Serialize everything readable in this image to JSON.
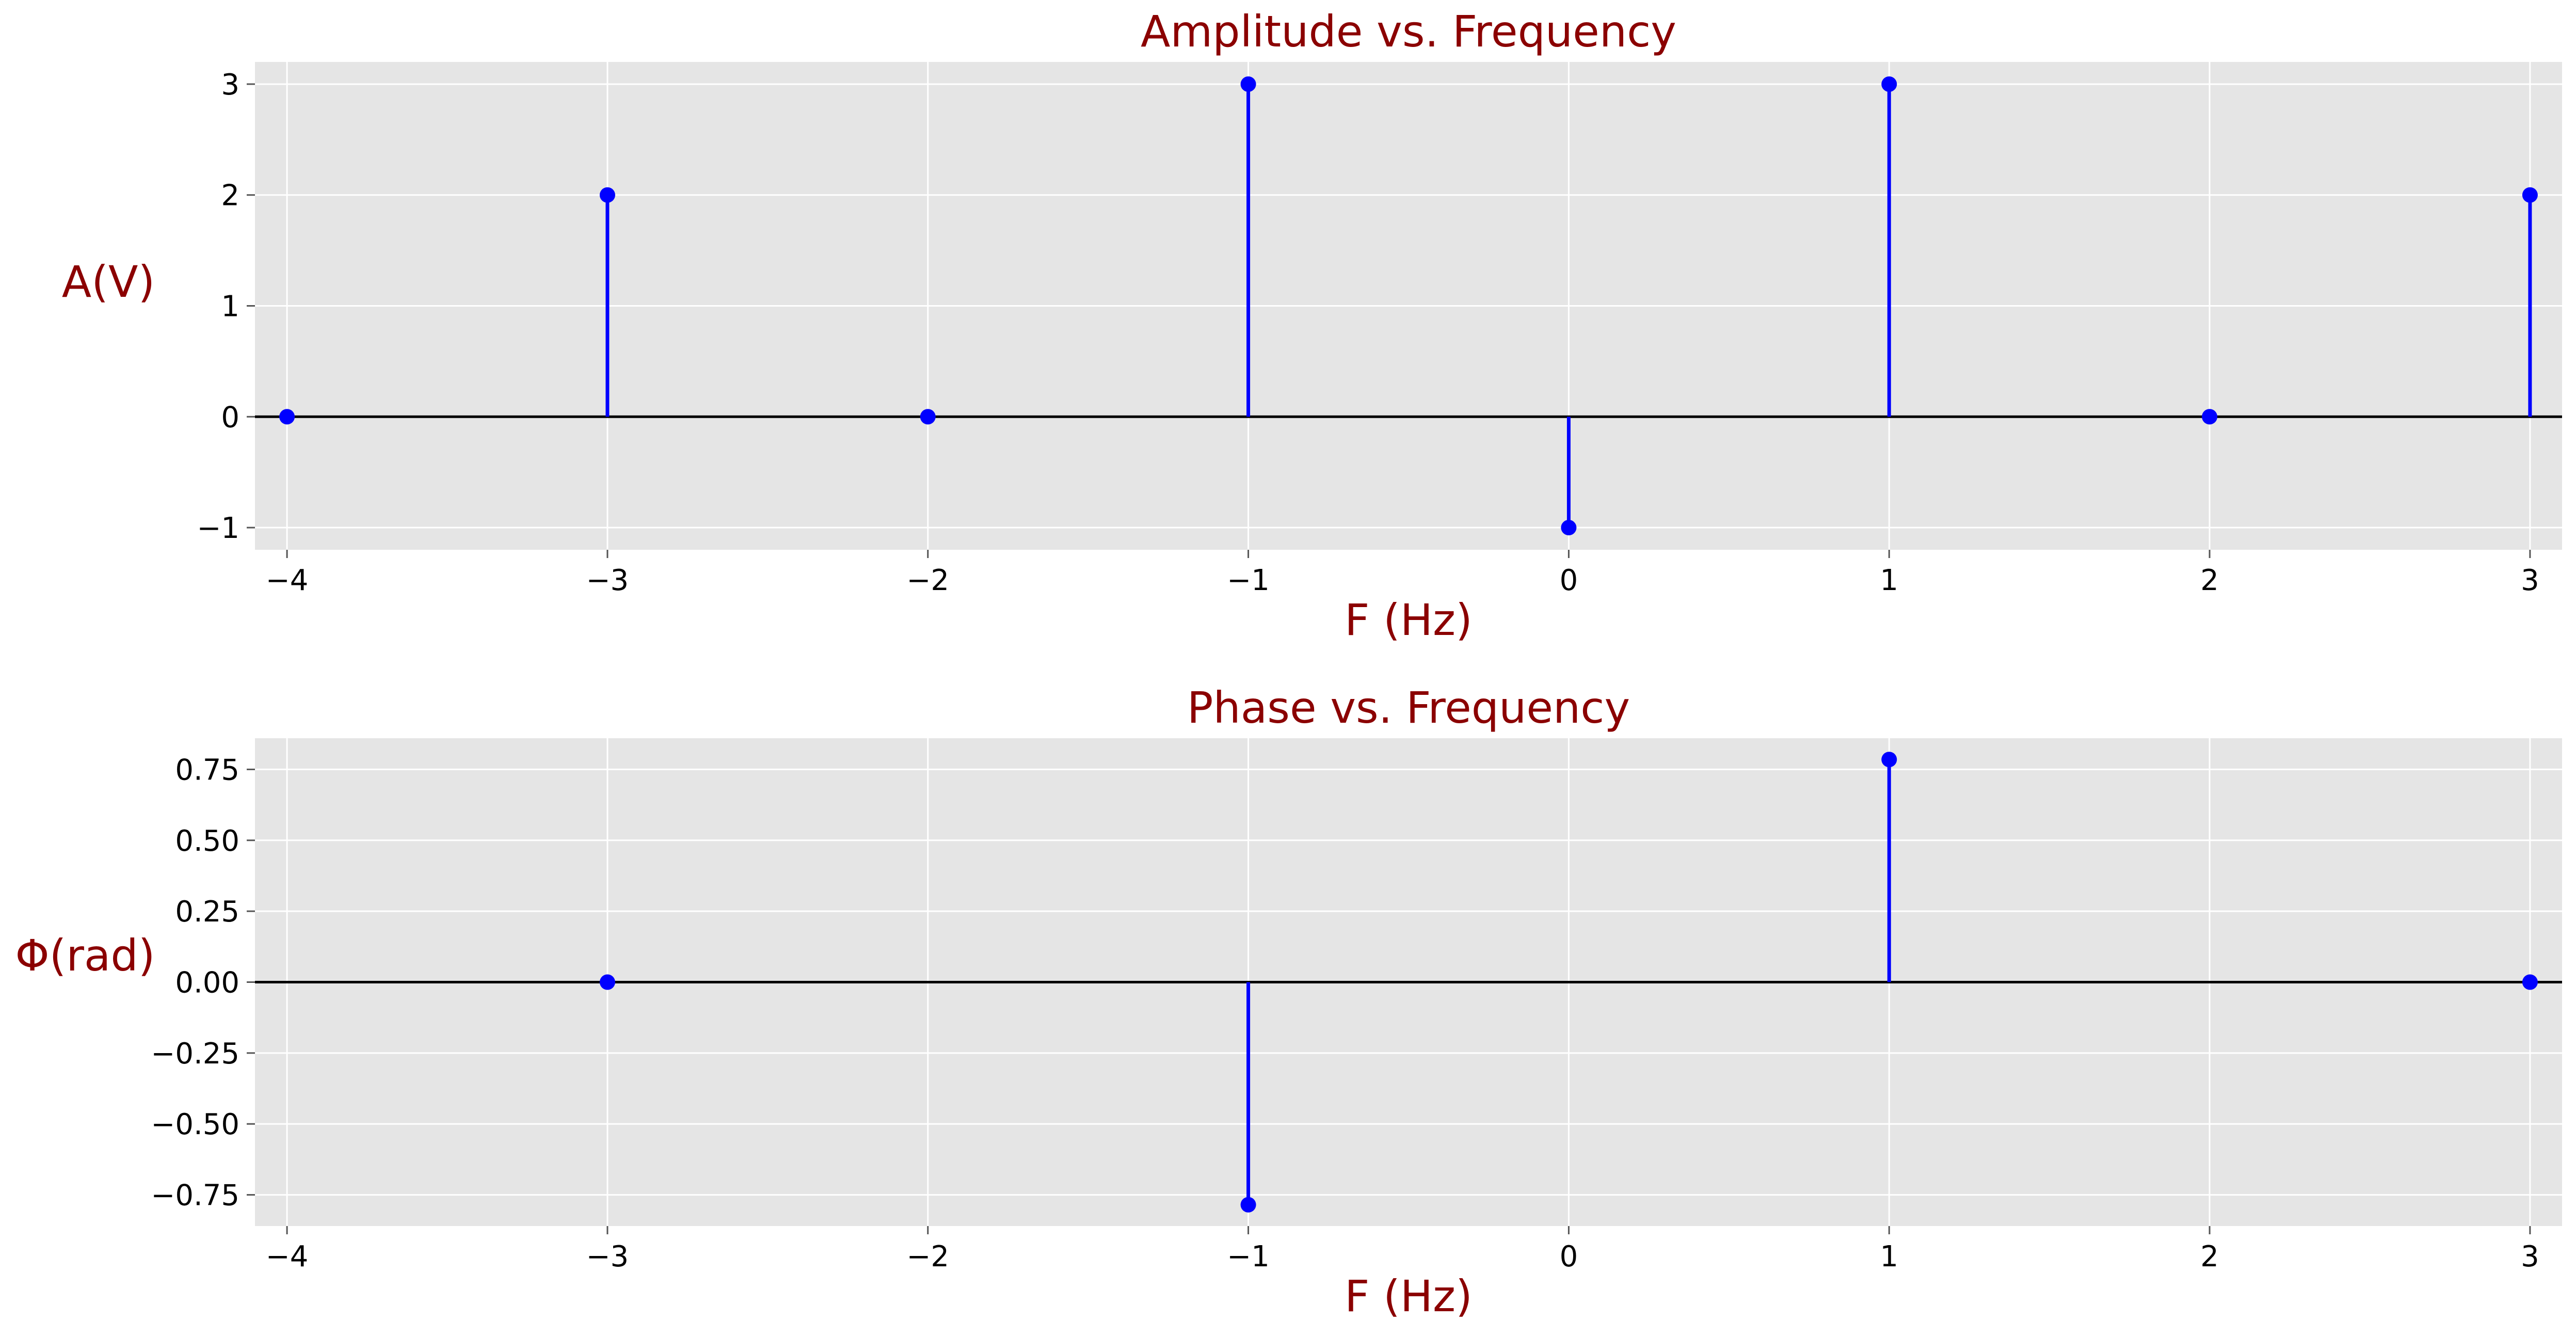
{
  "chart_data": [
    {
      "type": "stem",
      "title": "Amplitude vs. Frequency",
      "xlabel": "F (Hz)",
      "ylabel": "A(V)",
      "x": [
        -4,
        -3,
        -2,
        -1,
        0,
        1,
        2,
        3
      ],
      "y": [
        0,
        2,
        0,
        3,
        -1,
        3,
        0,
        2
      ],
      "xlim": [
        -4.1,
        3.1
      ],
      "ylim": [
        -1.2,
        3.2
      ],
      "xticks": [
        -4,
        -3,
        -2,
        -1,
        0,
        1,
        2,
        3
      ],
      "xtick_labels": [
        "−4",
        "−3",
        "−2",
        "−1",
        "0",
        "1",
        "2",
        "3"
      ],
      "yticks": [
        -1,
        0,
        1,
        2,
        3
      ],
      "ytick_labels": [
        "−1",
        "0",
        "1",
        "2",
        "3"
      ],
      "grid": true,
      "baseline": 0,
      "colors": {
        "stem": "#0000ff",
        "baseline": "#000000",
        "background": "#e5e5e5",
        "grid": "#ffffff",
        "label": "#8b0000"
      }
    },
    {
      "type": "stem",
      "title": "Phase vs. Frequency",
      "xlabel": "F (Hz)",
      "ylabel": "Φ(rad)",
      "x": [
        -3,
        -1,
        1,
        3
      ],
      "y": [
        0,
        -0.785,
        0.785,
        0
      ],
      "xlim": [
        -4.1,
        3.1
      ],
      "ylim": [
        -0.86,
        0.86
      ],
      "xticks": [
        -4,
        -3,
        -2,
        -1,
        0,
        1,
        2,
        3
      ],
      "xtick_labels": [
        "−4",
        "−3",
        "−2",
        "−1",
        "0",
        "1",
        "2",
        "3"
      ],
      "yticks": [
        -0.75,
        -0.5,
        -0.25,
        0,
        0.25,
        0.5,
        0.75
      ],
      "ytick_labels": [
        "−0.75",
        "−0.50",
        "−0.25",
        "0.00",
        "0.25",
        "0.50",
        "0.75"
      ],
      "grid": true,
      "baseline": 0,
      "colors": {
        "stem": "#0000ff",
        "baseline": "#000000",
        "background": "#e5e5e5",
        "grid": "#ffffff",
        "label": "#8b0000"
      }
    }
  ]
}
